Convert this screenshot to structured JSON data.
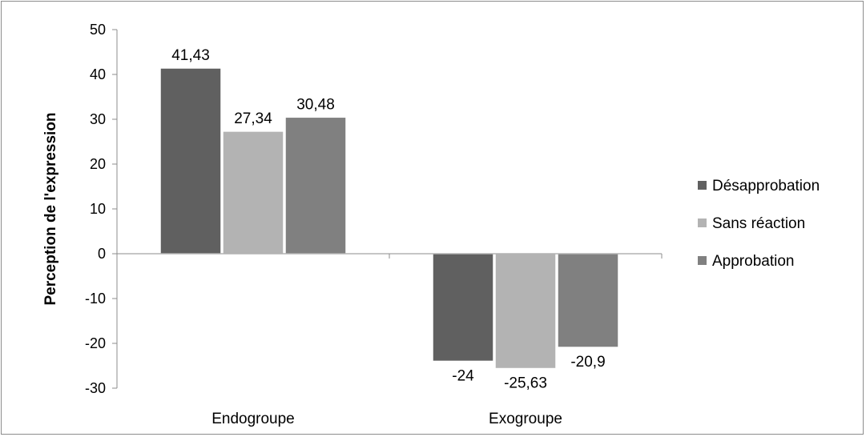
{
  "chart_data": {
    "type": "bar",
    "title": "",
    "xlabel": "",
    "ylabel": "Perception de l'expression",
    "categories": [
      "Endogroupe",
      "Exogroupe"
    ],
    "series": [
      {
        "name": "Désapprobation",
        "color": "#606060",
        "values": [
          41.43,
          -24
        ],
        "labels": [
          "41,43",
          "-24"
        ]
      },
      {
        "name": "Sans réaction",
        "color": "#b3b3b3",
        "values": [
          27.34,
          -25.63
        ],
        "labels": [
          "27,34",
          "-25,63"
        ]
      },
      {
        "name": "Approbation",
        "color": "#808080",
        "values": [
          30.48,
          -20.9
        ],
        "labels": [
          "30,48",
          "-20,9"
        ]
      }
    ],
    "ylim": [
      -30,
      50
    ],
    "yticks": [
      50,
      40,
      30,
      20,
      10,
      0,
      -10,
      -20,
      -30
    ],
    "grid": false,
    "legend_position": "right"
  }
}
